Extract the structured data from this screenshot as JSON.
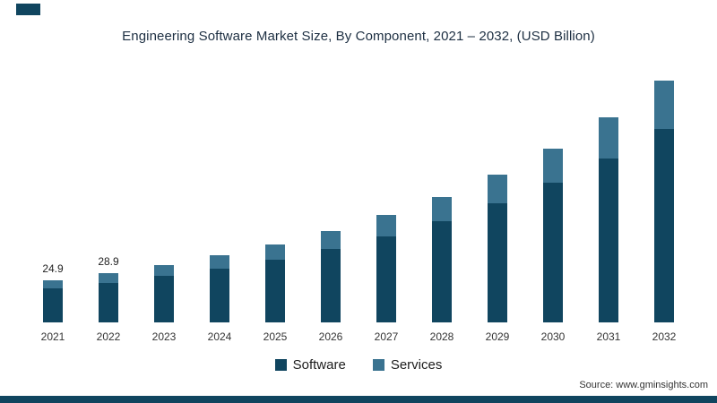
{
  "page": {
    "title": "Engineering Software Market Size, By Component, 2021 – 2032, (USD Billion)",
    "source": "Source: www.gminsights.com"
  },
  "colors": {
    "software": "#10455f",
    "services": "#3a7390",
    "accent_strip": "#10455f"
  },
  "legend": [
    {
      "label": "Software",
      "color": "#10455f"
    },
    {
      "label": "Services",
      "color": "#3a7390"
    }
  ],
  "chart_data": {
    "type": "bar",
    "stacked": true,
    "title": "Engineering Software Market Size, By Component, 2021 – 2032, (USD Billion)",
    "xlabel": "",
    "ylabel": "USD Billion",
    "ylim": [
      0,
      150
    ],
    "grid": false,
    "legend_position": "bottom",
    "categories": [
      "2021",
      "2022",
      "2023",
      "2024",
      "2025",
      "2026",
      "2027",
      "2028",
      "2029",
      "2030",
      "2031",
      "2032"
    ],
    "series": [
      {
        "name": "Software",
        "color": "#10455f",
        "values": [
          20.2,
          23.4,
          27.2,
          31.7,
          37.1,
          43.3,
          50.8,
          59.5,
          69.9,
          82.1,
          96.6,
          113.7
        ]
      },
      {
        "name": "Services",
        "color": "#3a7390",
        "values": [
          4.7,
          5.5,
          6.5,
          7.6,
          8.9,
          10.5,
          12.3,
          14.5,
          17.1,
          20.2,
          23.9,
          28.3
        ]
      }
    ],
    "totals": [
      24.9,
      28.9,
      33.7,
      39.3,
      46.0,
      53.8,
      63.1,
      74.0,
      87.0,
      102.3,
      120.5,
      142.0
    ],
    "shown_labels": [
      "24.9",
      "28.9",
      "",
      "",
      "",
      "",
      "",
      "",
      "",
      "",
      "",
      ""
    ]
  }
}
